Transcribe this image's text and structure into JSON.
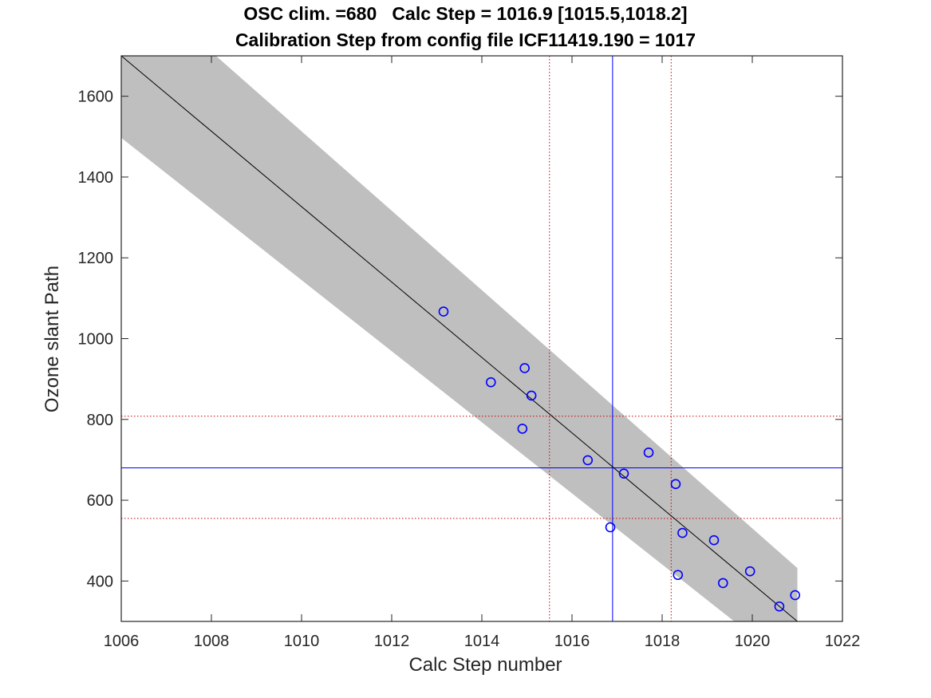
{
  "chart_data": {
    "type": "scatter",
    "title": "OSC clim. =680   Calc Step = 1016.9 [1015.5,1018.2]",
    "subtitle": "Calibration Step from config file ICF11419.190 = 1017",
    "xlabel": "Calc Step number",
    "ylabel": "Ozone slant Path",
    "xlim": [
      1006,
      1022
    ],
    "ylim": [
      300,
      1700
    ],
    "xticks": [
      1006,
      1008,
      1010,
      1012,
      1014,
      1016,
      1018,
      1020,
      1022
    ],
    "yticks": [
      400,
      600,
      800,
      1000,
      1200,
      1400,
      1600
    ],
    "grid": false,
    "series": [
      {
        "kind": "points",
        "color": "#0000ff",
        "marker": "circle",
        "x": [
          1013.15,
          1014.2,
          1014.9,
          1014.95,
          1015.1,
          1016.35,
          1016.85,
          1017.15,
          1017.7,
          1018.3,
          1018.35,
          1018.45,
          1019.15,
          1019.35,
          1019.95,
          1020.6,
          1020.95
        ],
        "y": [
          1067,
          892,
          777,
          927,
          859,
          699,
          533,
          666,
          718,
          640,
          415,
          519,
          501,
          395,
          424,
          337,
          365
        ]
      },
      {
        "kind": "fit-line",
        "color": "#000000",
        "x": [
          1006,
          1021
        ],
        "y": [
          1700,
          300
        ]
      },
      {
        "kind": "confidence-band",
        "color": "#bfbfbf",
        "x_upper": [
          1006,
          1008.1,
          1021
        ],
        "y_upper": [
          1700,
          1700,
          432
        ],
        "x_lower": [
          1006,
          1019.6
        ],
        "y_lower": [
          1497,
          300
        ],
        "x_right_edge": 1021
      }
    ],
    "reference_lines": [
      {
        "orientation": "vertical",
        "value": 1016.9,
        "color": "#0000ff",
        "style": "solid"
      },
      {
        "orientation": "horizontal",
        "value": 680,
        "color": "#0000ff",
        "style": "solid"
      },
      {
        "orientation": "vertical",
        "value": 1015.5,
        "color": "#cc0000",
        "style": "dotted"
      },
      {
        "orientation": "vertical",
        "value": 1018.2,
        "color": "#cc0000",
        "style": "dotted"
      },
      {
        "orientation": "horizontal",
        "value": 808,
        "color": "#cc0000",
        "style": "dotted"
      },
      {
        "orientation": "horizontal",
        "value": 555,
        "color": "#cc0000",
        "style": "dotted"
      }
    ]
  }
}
